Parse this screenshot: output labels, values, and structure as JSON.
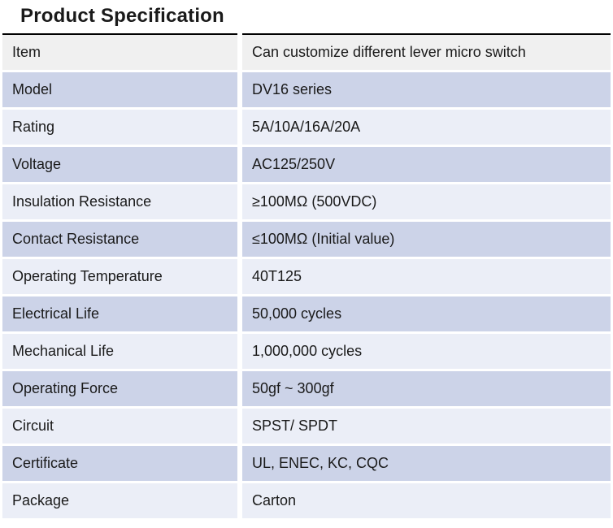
{
  "title": "Product Specification",
  "table": {
    "rows": [
      {
        "label": "Item",
        "value": "Can customize different lever micro switch"
      },
      {
        "label": "Model",
        "value": "DV16 series"
      },
      {
        "label": "Rating",
        "value": "5A/10A/16A/20A"
      },
      {
        "label": "Voltage",
        "value": "AC125/250V"
      },
      {
        "label": "Insulation Resistance",
        "value": "≥100MΩ (500VDC)"
      },
      {
        "label": "Contact Resistance",
        "value": "≤100MΩ (Initial value)"
      },
      {
        "label": "Operating Temperature",
        "value": "40T125"
      },
      {
        "label": "Electrical Life",
        "value": "50,000 cycles"
      },
      {
        "label": "Mechanical Life",
        "value": "1,000,000 cycles"
      },
      {
        "label": "Operating Force",
        "value": "50gf ~ 300gf"
      },
      {
        "label": "Circuit",
        "value": "SPST/ SPDT"
      },
      {
        "label": "Certificate",
        "value": "UL, ENEC, KC, CQC"
      },
      {
        "label": "Package",
        "value": "Carton"
      }
    ]
  },
  "colors": {
    "accent_row": "#ccd3e8",
    "light_row": "#ebeef7",
    "header_row": "#f0f0f0",
    "border": "#000000",
    "text": "#1a1a1a",
    "background": "#ffffff"
  }
}
